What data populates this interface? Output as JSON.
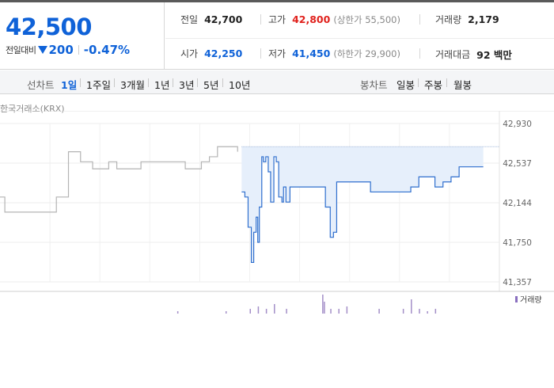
{
  "quote": {
    "price": "42,500",
    "change_label": "전일대비",
    "change_abs": "200",
    "change_rate": "-0.47%",
    "direction_icon": "down-triangle-icon",
    "colors": {
      "down": "#0f62d8",
      "up": "#e0211c"
    }
  },
  "stats": {
    "prev_close": {
      "label": "전일",
      "value": "42,700"
    },
    "high": {
      "label": "고가",
      "value": "42,800",
      "sub": "(상한가 55,500)"
    },
    "volume": {
      "label": "거래량",
      "value": "2,179"
    },
    "open": {
      "label": "시가",
      "value": "42,250"
    },
    "low": {
      "label": "저가",
      "value": "41,450",
      "sub": "(하한가 29,900)"
    },
    "turnover": {
      "label": "거래대금",
      "value": "92 백만"
    }
  },
  "period_bar": {
    "line_label": "선차트",
    "line_periods": [
      "1일",
      "1주일",
      "3개월",
      "1년",
      "3년",
      "5년",
      "10년"
    ],
    "active_period": "1일",
    "candle_label": "봉차트",
    "candle_periods": [
      "일봉",
      "주봉",
      "월봉"
    ]
  },
  "chart_header": {
    "exchange": "한국거래소(KRX)"
  },
  "chart_data": {
    "type": "line",
    "y_ticks": [
      "42,930",
      "42,537",
      "42,144",
      "41,750",
      "41,357"
    ],
    "ylim": [
      41357,
      42930
    ],
    "grid": true,
    "volume_legend": "거래량",
    "series": [
      {
        "role": "previous-day",
        "color": "#b4b4b4",
        "x": [
          0,
          0.5,
          0.6,
          6.5,
          7,
          7.8,
          8.5,
          9.2,
          10,
          11,
          11.5,
          12.5,
          13.5,
          14.5,
          16.5,
          17.5,
          18.5,
          22,
          23,
          25,
          26,
          27,
          29.5
        ],
        "y": [
          42200,
          42200,
          42050,
          42050,
          42200,
          42200,
          42650,
          42650,
          42550,
          42550,
          42480,
          42480,
          42550,
          42480,
          42480,
          42550,
          42550,
          42550,
          42480,
          42550,
          42600,
          42700,
          42650
        ]
      },
      {
        "role": "today",
        "color": "#2f6fce",
        "fill": "#e6effb",
        "reference_line": 42700,
        "x": [
          30,
          30.4,
          30.8,
          31.2,
          31.5,
          31.8,
          32,
          32.2,
          32.5,
          32.7,
          33,
          33.3,
          33.6,
          34,
          34.3,
          34.6,
          35,
          35.2,
          35.5,
          36,
          36.5,
          37,
          38,
          39,
          40,
          40.4,
          41,
          41.4,
          41.8,
          42.2,
          42.6,
          43,
          45,
          46,
          47,
          48,
          49,
          50,
          51,
          52,
          53,
          54,
          55,
          56,
          57,
          58,
          59,
          60
        ],
        "y": [
          42250,
          42200,
          41900,
          41550,
          41850,
          42000,
          41750,
          42100,
          42600,
          42550,
          42600,
          42450,
          42150,
          42600,
          42550,
          42200,
          42150,
          42300,
          42150,
          42300,
          42300,
          42300,
          42300,
          42300,
          42300,
          42100,
          41800,
          41850,
          42350,
          42350,
          42350,
          42350,
          42350,
          42250,
          42250,
          42250,
          42250,
          42250,
          42300,
          42400,
          42400,
          42300,
          42350,
          42400,
          42500,
          42500,
          42500,
          42500
        ]
      }
    ],
    "volume": {
      "x": [
        22,
        28,
        31,
        32,
        33,
        34,
        35.5,
        40,
        40.2,
        41,
        42,
        43,
        47,
        50,
        51,
        52,
        53,
        54
      ],
      "v": [
        1,
        1,
        2,
        3,
        2,
        4,
        2,
        8,
        5,
        2,
        2,
        3,
        2,
        2,
        6,
        2,
        1,
        2
      ]
    }
  }
}
